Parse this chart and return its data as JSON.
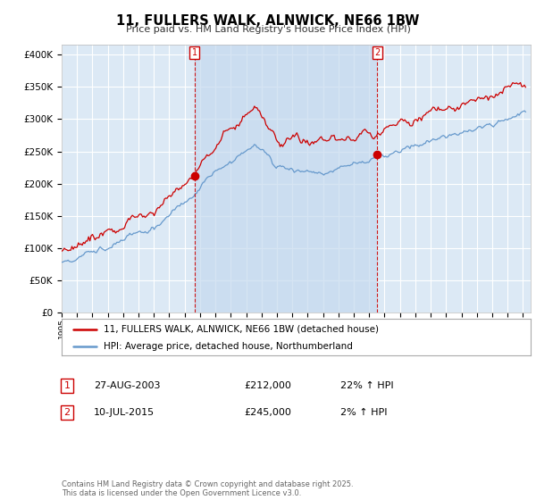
{
  "title": "11, FULLERS WALK, ALNWICK, NE66 1BW",
  "subtitle": "Price paid vs. HM Land Registry's House Price Index (HPI)",
  "ytick_vals": [
    0,
    50000,
    100000,
    150000,
    200000,
    250000,
    300000,
    350000,
    400000
  ],
  "ylim": [
    0,
    415000
  ],
  "xlim_start": 1995.0,
  "xlim_end": 2025.5,
  "chart_bg": "#dce9f5",
  "shade_color": "#c5d9ee",
  "grid_color": "#ffffff",
  "red_line_color": "#cc0000",
  "blue_line_color": "#6699cc",
  "sale1_x": 2003.65,
  "sale1_y": 212000,
  "sale2_x": 2015.52,
  "sale2_y": 245000,
  "legend_red": "11, FULLERS WALK, ALNWICK, NE66 1BW (detached house)",
  "legend_blue": "HPI: Average price, detached house, Northumberland",
  "table_row1": [
    "1",
    "27-AUG-2003",
    "£212,000",
    "22% ↑ HPI"
  ],
  "table_row2": [
    "2",
    "10-JUL-2015",
    "£245,000",
    "2% ↑ HPI"
  ],
  "footer": "Contains HM Land Registry data © Crown copyright and database right 2025.\nThis data is licensed under the Open Government Licence v3.0."
}
